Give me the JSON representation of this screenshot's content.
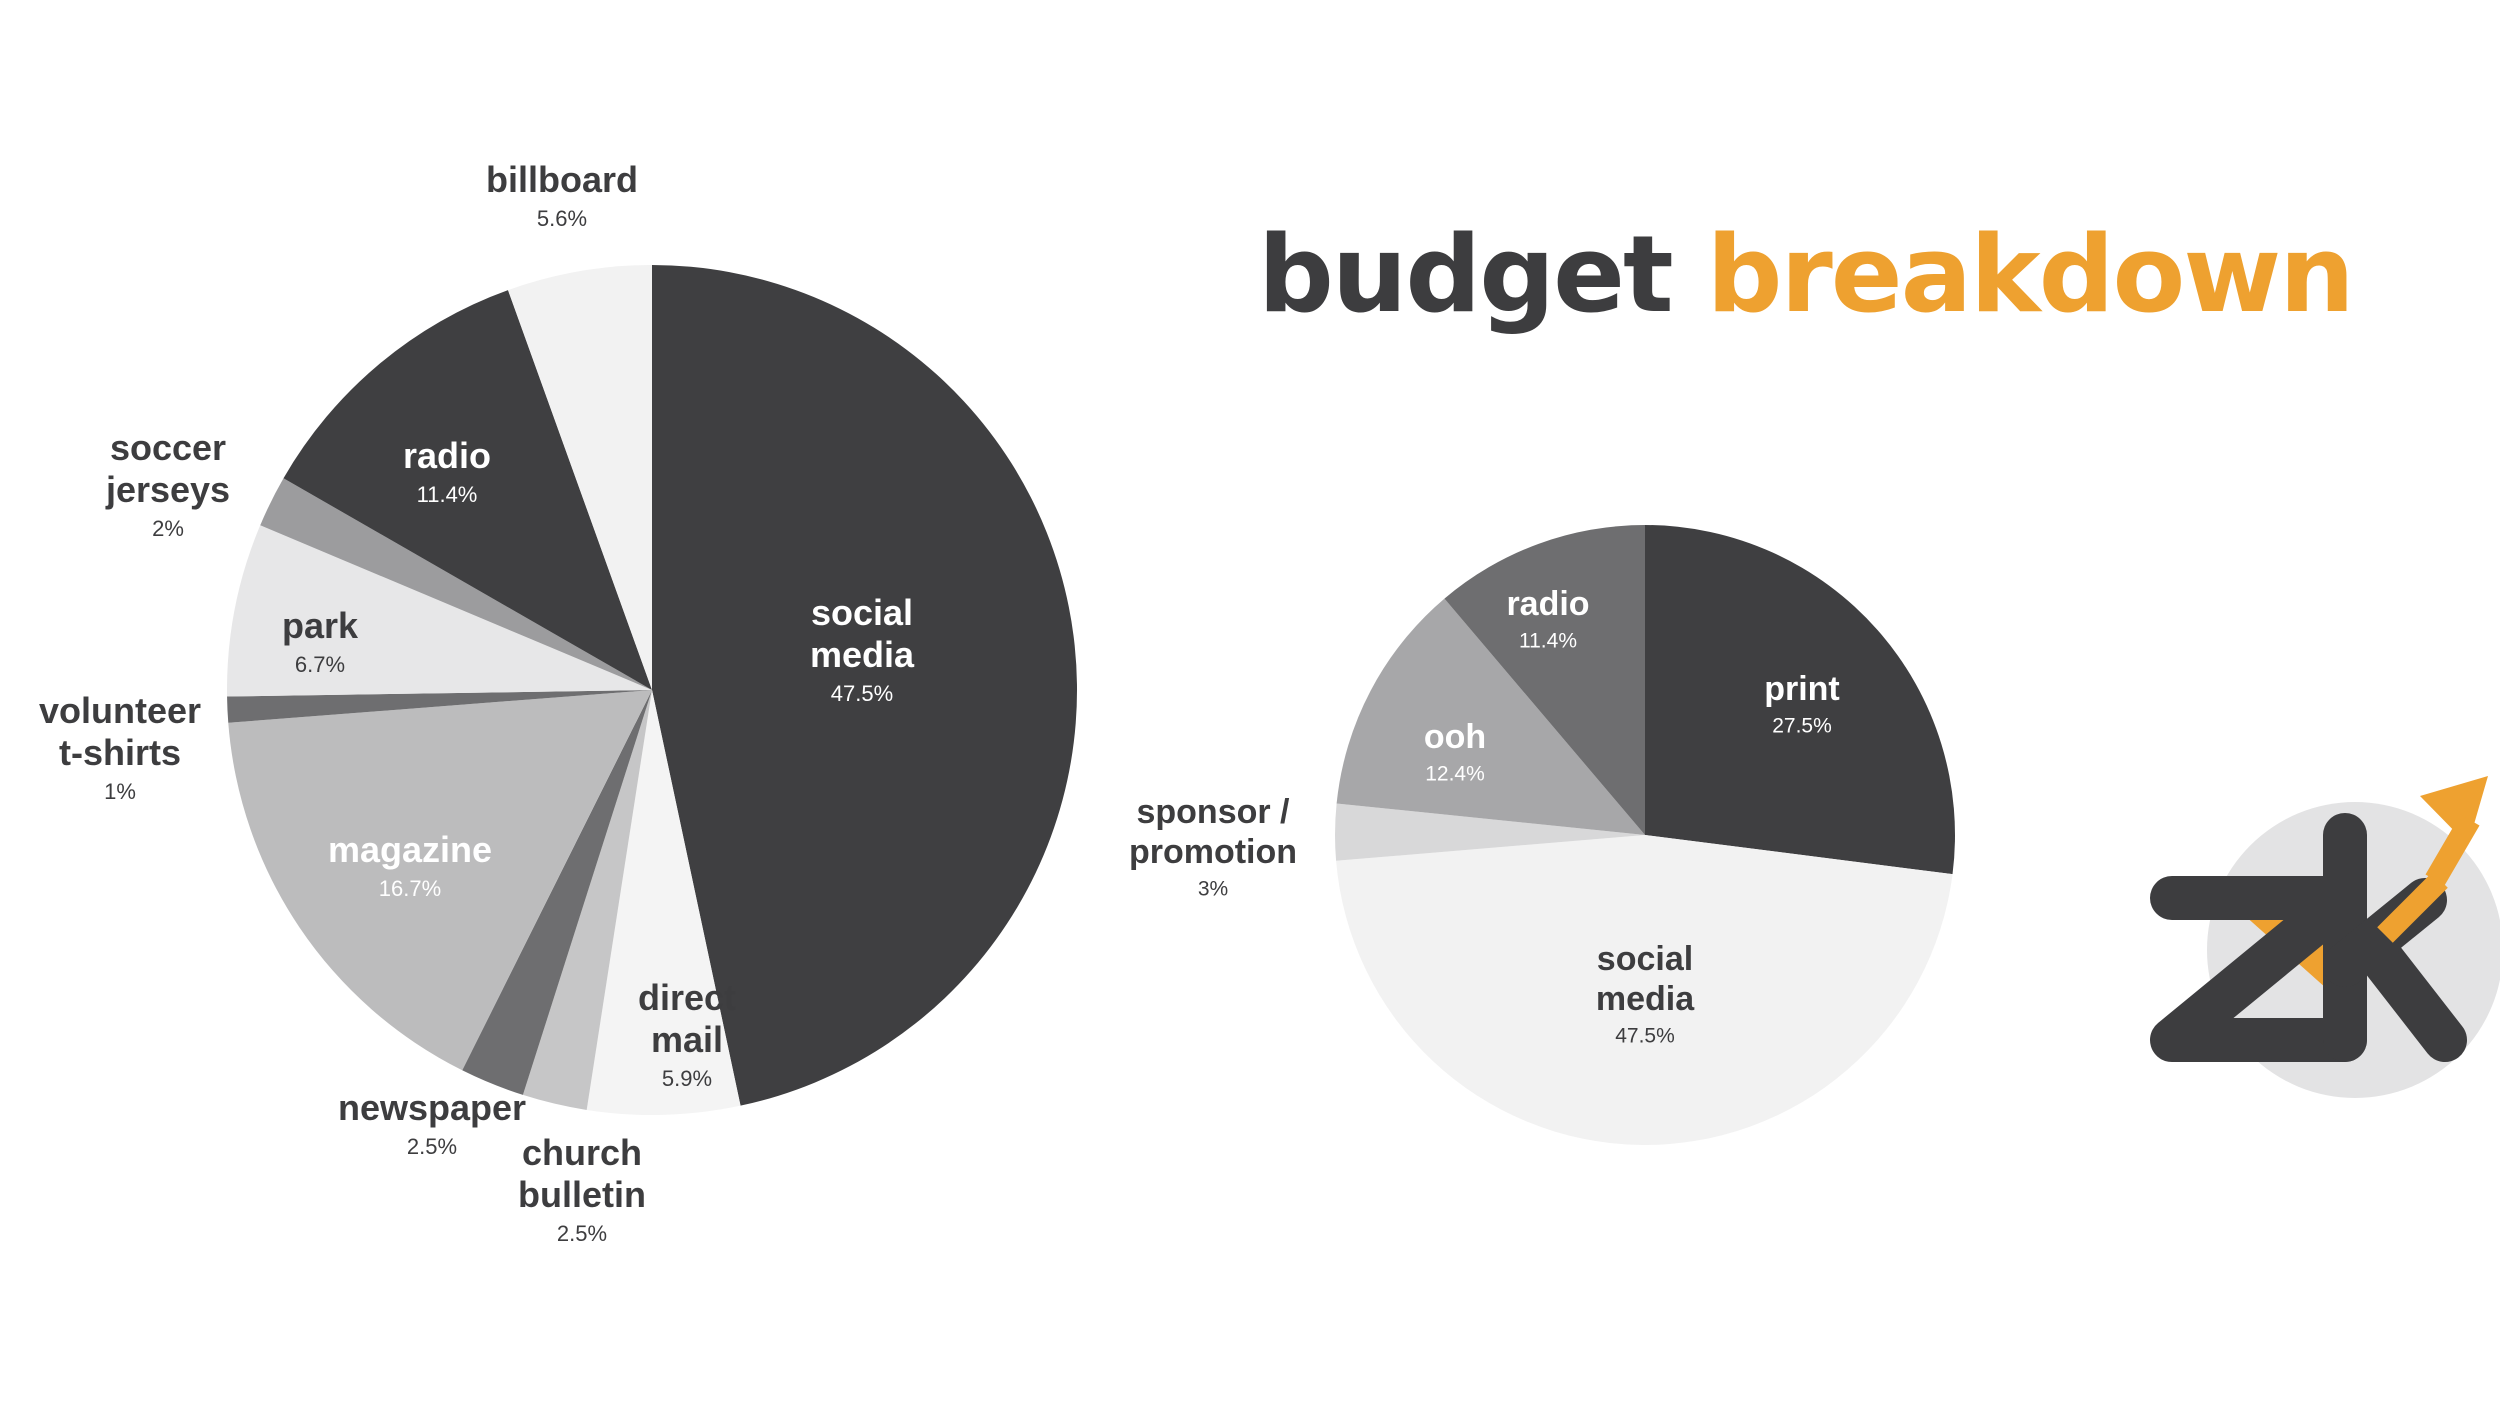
{
  "title": {
    "part1": "budget",
    "part2": "breakdown"
  },
  "colors": {
    "title_dark": "#3d3d3f",
    "title_accent": "#eea130",
    "label_dark": "#3d3d3f",
    "label_light": "#ffffff",
    "logo_circle": "#e3e3e4",
    "logo_dark": "#3d3d3f",
    "logo_accent": "#eea130"
  },
  "logo": {
    "text": "zk",
    "icon": "arrow-up-right-icon"
  },
  "chart_data": [
    {
      "type": "pie",
      "start_angle_deg": 0,
      "direction": "clockwise",
      "slices": [
        {
          "label": [
            "social",
            "media"
          ],
          "pct_text": "47.5%",
          "value": 47.5,
          "color": "#3f3f41",
          "label_pos": "inside",
          "text_color": "#ffffff"
        },
        {
          "label": [
            "direct",
            "mail"
          ],
          "pct_text": "5.9%",
          "value": 5.9,
          "color": "#f4f4f4",
          "label_pos": "inside",
          "text_color": "#3d3d3f"
        },
        {
          "label": [
            "church",
            "bulletin"
          ],
          "pct_text": "2.5%",
          "value": 2.5,
          "color": "#c6c6c7",
          "label_pos": "outside",
          "text_color": "#3d3d3f"
        },
        {
          "label": [
            "newspaper"
          ],
          "pct_text": "2.5%",
          "value": 2.5,
          "color": "#6e6e70",
          "label_pos": "outside",
          "text_color": "#3d3d3f"
        },
        {
          "label": [
            "magazine"
          ],
          "pct_text": "16.7%",
          "value": 16.7,
          "color": "#bcbcbd",
          "label_pos": "inside",
          "text_color": "#ffffff"
        },
        {
          "label": [
            "volunteer",
            "t-shirts"
          ],
          "pct_text": "1%",
          "value": 1,
          "color": "#6e6e70",
          "label_pos": "outside",
          "text_color": "#3d3d3f"
        },
        {
          "label": [
            "park"
          ],
          "pct_text": "6.7%",
          "value": 6.7,
          "color": "#e7e7e8",
          "label_pos": "inside",
          "text_color": "#3d3d3f"
        },
        {
          "label": [
            "soccer",
            "jerseys"
          ],
          "pct_text": "2%",
          "value": 2,
          "color": "#9c9c9e",
          "label_pos": "outside",
          "text_color": "#3d3d3f"
        },
        {
          "label": [
            "radio"
          ],
          "pct_text": "11.4%",
          "value": 11.4,
          "color": "#3f3f41",
          "label_pos": "inside",
          "text_color": "#ffffff"
        },
        {
          "label": [
            "billboard"
          ],
          "pct_text": "5.6%",
          "value": 5.6,
          "color": "#f2f2f2",
          "label_pos": "outside",
          "text_color": "#3d3d3f"
        }
      ]
    },
    {
      "type": "pie",
      "start_angle_deg": 0,
      "direction": "clockwise",
      "slices": [
        {
          "label": [
            "print"
          ],
          "pct_text": "27.5%",
          "value": 27.5,
          "color": "#3f3f41",
          "label_pos": "inside",
          "text_color": "#ffffff"
        },
        {
          "label": [
            "social",
            "media"
          ],
          "pct_text": "47.5%",
          "value": 47.5,
          "color": "#f2f2f2",
          "label_pos": "inside",
          "text_color": "#3d3d3f"
        },
        {
          "label": [
            "sponsor /",
            "promotion"
          ],
          "pct_text": "3%",
          "value": 3,
          "color": "#d8d8d9",
          "label_pos": "outside",
          "text_color": "#3d3d3f"
        },
        {
          "label": [
            "ooh"
          ],
          "pct_text": "12.4%",
          "value": 12.4,
          "color": "#a7a7a9",
          "label_pos": "inside",
          "text_color": "#ffffff"
        },
        {
          "label": [
            "radio"
          ],
          "pct_text": "11.4%",
          "value": 11.4,
          "color": "#6e6e70",
          "label_pos": "inside",
          "text_color": "#ffffff"
        }
      ]
    }
  ]
}
